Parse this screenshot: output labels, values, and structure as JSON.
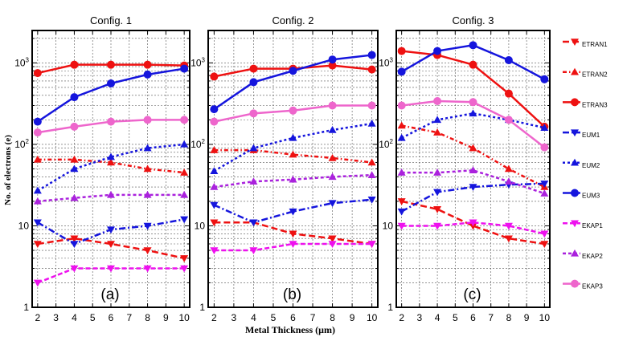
{
  "chart_data": {
    "type": "line",
    "ylabel": "No. of electrons (e)",
    "xlabel": "Metal Thickness (μm)",
    "y_scale": "log",
    "ylim": [
      1,
      2500
    ],
    "xlim": [
      1.7,
      10.3
    ],
    "x_ticks": [
      "2",
      "3",
      "4",
      "5",
      "6",
      "7",
      "8",
      "9",
      "10"
    ],
    "y_ticks": [
      {
        "value": 1,
        "label": "1"
      },
      {
        "value": 10,
        "label": "10"
      },
      {
        "value": 100,
        "label": "10",
        "exp": "2"
      },
      {
        "value": 1000,
        "label": "10",
        "exp": "3"
      }
    ],
    "x": [
      2,
      4,
      6,
      8,
      10
    ],
    "legend": [
      {
        "name": "ETRAN1",
        "color": "#ee1111",
        "marker": "tri-down",
        "dash": "8,4"
      },
      {
        "name": "ETRAN2",
        "color": "#ee1111",
        "marker": "tri-up",
        "dash": "5,3,1.5,3"
      },
      {
        "name": "ETRAN3",
        "color": "#ee1111",
        "marker": "circle",
        "dash": ""
      },
      {
        "name": "EUM1",
        "color": "#1515dd",
        "marker": "tri-down",
        "dash": "8,3,2,3"
      },
      {
        "name": "EUM2",
        "color": "#1515dd",
        "marker": "tri-up",
        "dash": "3,3"
      },
      {
        "name": "EUM3",
        "color": "#1515dd",
        "marker": "circle",
        "dash": ""
      },
      {
        "name": "EKAP1",
        "color": "#ee11ee",
        "marker": "tri-down",
        "dash": "6,3"
      },
      {
        "name": "EKAP2",
        "color": "#aa22dd",
        "marker": "tri-up",
        "dash": "4,3"
      },
      {
        "name": "EKAP3",
        "color": "#ee66cc",
        "marker": "circle",
        "dash": ""
      }
    ],
    "panels": [
      {
        "title": "Config. 1",
        "letter": "(a)",
        "series": {
          "ETRAN1": [
            6,
            7,
            6,
            5,
            4
          ],
          "ETRAN2": [
            65,
            65,
            60,
            50,
            45
          ],
          "ETRAN3": [
            750,
            950,
            950,
            950,
            930
          ],
          "EUM1": [
            11,
            6,
            9,
            10,
            12
          ],
          "EUM2": [
            27,
            50,
            70,
            90,
            100
          ],
          "EUM3": [
            190,
            380,
            560,
            720,
            850
          ],
          "EKAP1": [
            2,
            3,
            3,
            3,
            3
          ],
          "EKAP2": [
            20,
            22,
            24,
            24,
            24
          ],
          "EKAP3": [
            140,
            165,
            190,
            200,
            200
          ]
        }
      },
      {
        "title": "Config. 2",
        "letter": "(b)",
        "series": {
          "ETRAN1": [
            11,
            11,
            8,
            7,
            6
          ],
          "ETRAN2": [
            85,
            85,
            75,
            68,
            60
          ],
          "ETRAN3": [
            680,
            850,
            850,
            930,
            830
          ],
          "EUM1": [
            18,
            11,
            15,
            19,
            21
          ],
          "EUM2": [
            47,
            90,
            120,
            150,
            180
          ],
          "EUM3": [
            270,
            580,
            800,
            1100,
            1250
          ],
          "EKAP1": [
            5,
            5,
            6,
            6,
            6
          ],
          "EKAP2": [
            30,
            35,
            37,
            40,
            42
          ],
          "EKAP3": [
            190,
            240,
            260,
            300,
            300
          ]
        }
      },
      {
        "title": "Config. 3",
        "letter": "(c)",
        "series": {
          "ETRAN1": [
            20,
            16,
            10,
            7,
            6
          ],
          "ETRAN2": [
            170,
            140,
            90,
            50,
            30
          ],
          "ETRAN3": [
            1400,
            1250,
            950,
            420,
            165
          ],
          "EUM1": [
            15,
            26,
            30,
            32,
            33
          ],
          "EUM2": [
            120,
            200,
            240,
            200,
            160
          ],
          "EUM3": [
            780,
            1400,
            1650,
            1080,
            630
          ],
          "EKAP1": [
            10,
            10,
            11,
            10,
            8
          ],
          "EKAP2": [
            45,
            45,
            48,
            35,
            25
          ],
          "EKAP3": [
            300,
            340,
            330,
            200,
            92
          ]
        }
      }
    ]
  }
}
